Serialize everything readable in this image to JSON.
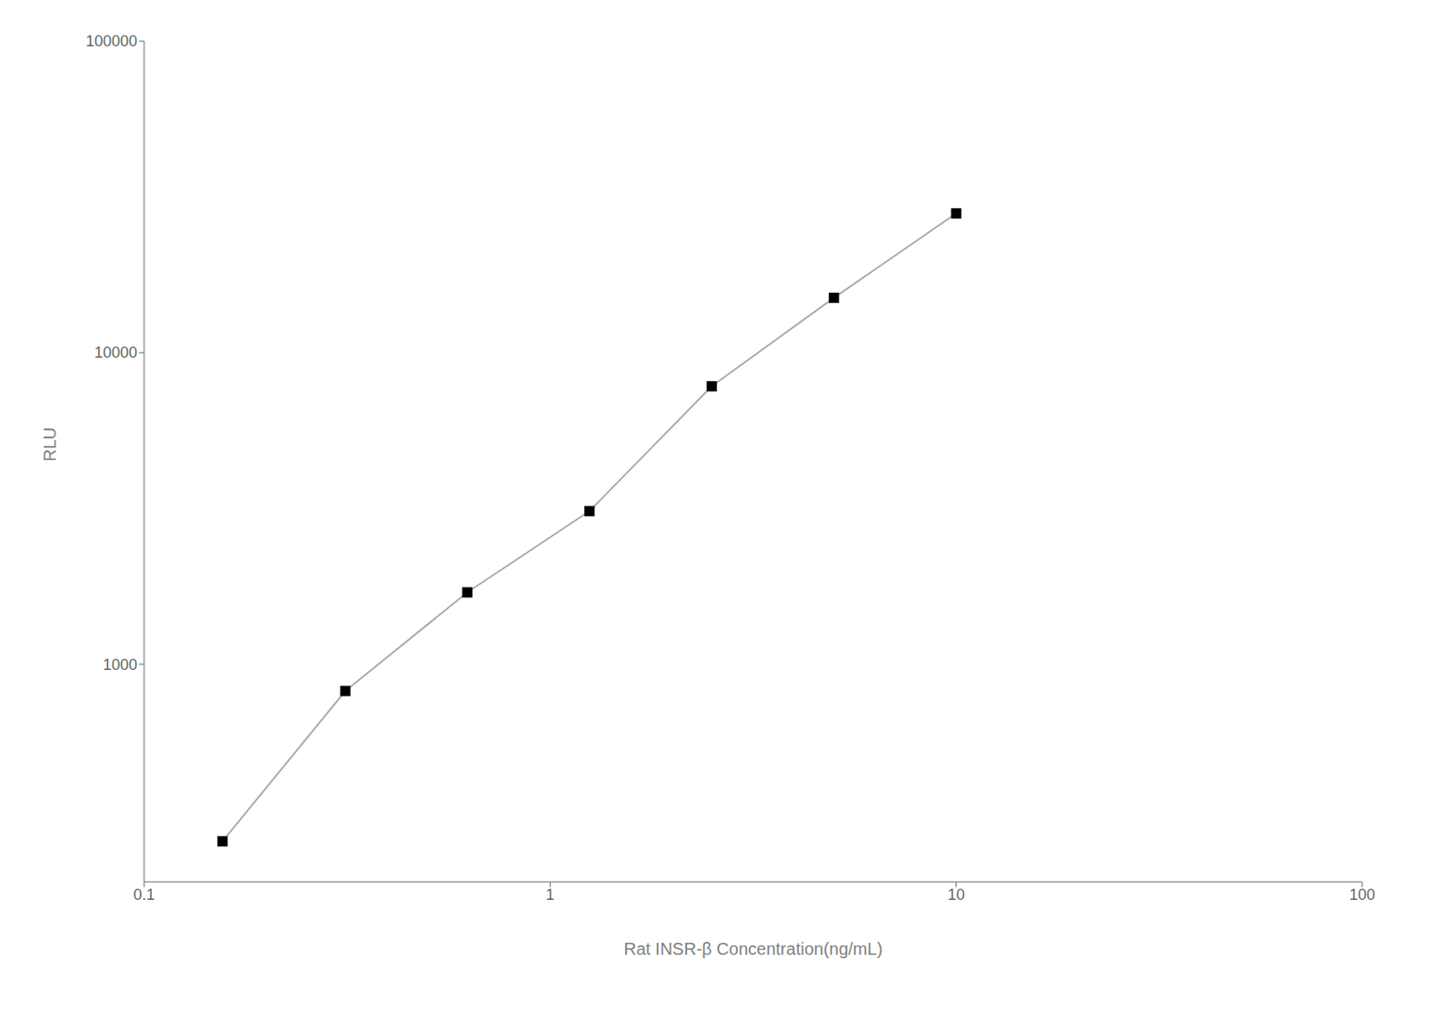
{
  "chart_data": {
    "type": "line",
    "x": [
      0.156,
      0.313,
      0.625,
      1.25,
      2.5,
      5.0,
      10.0
    ],
    "series": [
      {
        "type": "line",
        "color": "#aaaaaa",
        "values": [
          270,
          820,
          1700,
          3100,
          7800,
          15000,
          28000
        ]
      },
      {
        "type": "scatter",
        "color": "#000000",
        "marker": "square",
        "values": [
          270,
          820,
          1700,
          3100,
          7800,
          15000,
          28000
        ]
      }
    ],
    "xlabel": "Rat INSR-β  Concentration(ng/mL)",
    "ylabel": "RLU",
    "log": true,
    "xlim": [
      0.1,
      100
    ],
    "ylim": [
      200,
      100000
    ],
    "xticks": [
      0.1,
      1,
      10,
      100
    ],
    "yticks": [
      1000,
      10000,
      100000
    ]
  }
}
